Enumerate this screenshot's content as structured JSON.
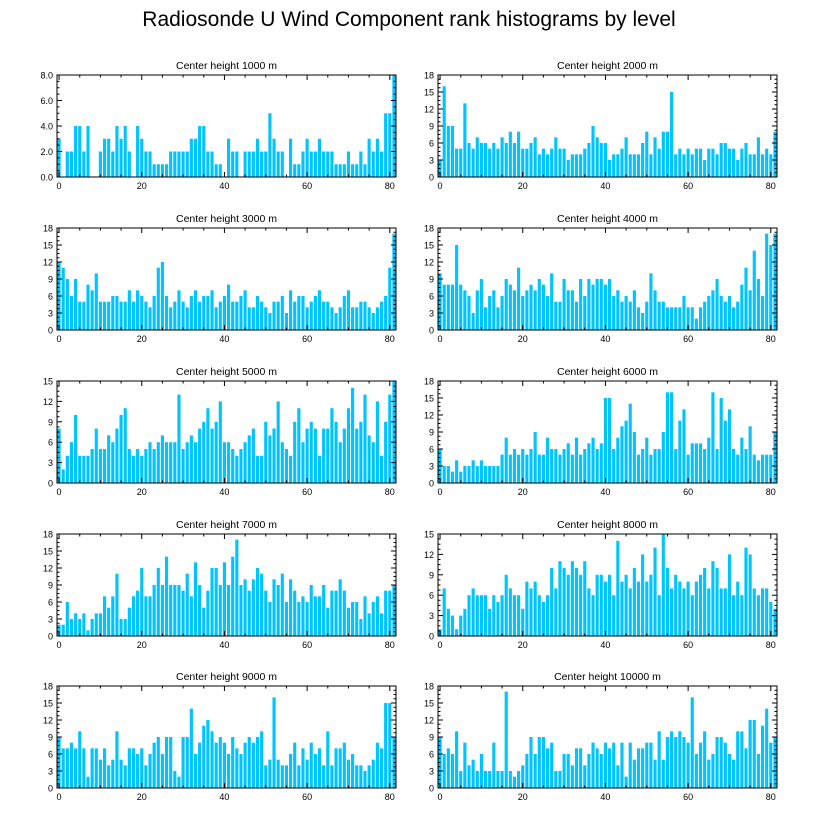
{
  "title": "Radiosonde U Wind Component rank histograms by level",
  "colors": {
    "bar": "#00c4ff",
    "axis": "#000000",
    "background": "#ffffff"
  },
  "chart_data": [
    {
      "type": "bar",
      "subtitle": "Center height 1000 m",
      "ylim": [
        0,
        8
      ],
      "yticks": [
        0,
        2,
        4,
        6,
        8
      ],
      "ytick_labels": [
        "0.0",
        "2.0",
        "4.0",
        "6.0",
        "8.0"
      ],
      "xticks": [
        0,
        20,
        40,
        60,
        80
      ],
      "xlim": [
        -0.5,
        81.5
      ],
      "values": [
        3,
        0,
        2,
        2,
        4,
        4,
        2,
        4,
        0,
        0,
        2,
        3,
        3,
        2,
        4,
        3,
        4,
        2,
        0,
        4,
        3,
        2,
        2,
        1,
        1,
        1,
        1,
        2,
        2,
        2,
        2,
        2,
        3,
        3,
        4,
        4,
        2,
        2,
        1,
        1,
        0,
        3,
        2,
        2,
        0,
        2,
        2,
        2,
        3,
        2,
        2,
        5,
        3,
        2,
        2,
        0,
        3,
        1,
        1,
        2,
        3,
        2,
        2,
        3,
        2,
        2,
        2,
        1,
        1,
        1,
        2,
        1,
        1,
        2,
        1,
        3,
        2,
        3,
        2,
        5,
        5,
        8
      ]
    },
    {
      "type": "bar",
      "subtitle": "Center height 2000 m",
      "ylim": [
        0,
        18
      ],
      "yticks": [
        0,
        3,
        6,
        9,
        12,
        15,
        18
      ],
      "ytick_labels": [
        "0",
        "3",
        "6",
        "9",
        "12",
        "15",
        "18"
      ],
      "xticks": [
        0,
        20,
        40,
        60,
        80
      ],
      "xlim": [
        -0.5,
        81.5
      ],
      "values": [
        3,
        16,
        9,
        9,
        5,
        5,
        13,
        6,
        5,
        7,
        6,
        6,
        5,
        6,
        5,
        7,
        6,
        8,
        6,
        8,
        5,
        5,
        6,
        7,
        4,
        5,
        4,
        5,
        7,
        5,
        5,
        3,
        4,
        4,
        4,
        5,
        6,
        9,
        7,
        6,
        6,
        3,
        4,
        4,
        5,
        7,
        4,
        4,
        4,
        6,
        8,
        4,
        7,
        5,
        8,
        8,
        15,
        4,
        5,
        4,
        5,
        4,
        5,
        5,
        3,
        5,
        5,
        4,
        6,
        6,
        5,
        5,
        3,
        5,
        6,
        4,
        4,
        7,
        4,
        5,
        4,
        8
      ]
    },
    {
      "type": "bar",
      "subtitle": "Center height 3000 m",
      "ylim": [
        0,
        18
      ],
      "yticks": [
        0,
        3,
        6,
        9,
        12,
        15,
        18
      ],
      "ytick_labels": [
        "0",
        "3",
        "6",
        "9",
        "12",
        "15",
        "18"
      ],
      "xticks": [
        0,
        20,
        40,
        60,
        80
      ],
      "xlim": [
        -0.5,
        81.5
      ],
      "values": [
        12,
        11,
        9,
        6,
        9,
        5,
        5,
        8,
        7,
        10,
        5,
        5,
        5,
        6,
        6,
        5,
        5,
        7,
        5,
        7,
        6,
        5,
        4,
        6,
        11,
        12,
        6,
        4,
        5,
        7,
        5,
        4,
        6,
        7,
        5,
        6,
        6,
        7,
        4,
        5,
        6,
        8,
        5,
        5,
        6,
        7,
        4,
        4,
        6,
        5,
        4,
        3,
        5,
        5,
        6,
        3,
        7,
        5,
        6,
        6,
        4,
        5,
        6,
        7,
        5,
        5,
        4,
        3,
        4,
        6,
        7,
        4,
        4,
        5,
        5,
        4,
        3,
        4,
        5,
        6,
        11,
        17
      ]
    },
    {
      "type": "bar",
      "subtitle": "Center height 4000 m",
      "ylim": [
        0,
        18
      ],
      "yticks": [
        0,
        3,
        6,
        9,
        12,
        15,
        18
      ],
      "ytick_labels": [
        "0",
        "3",
        "6",
        "9",
        "12",
        "15",
        "18"
      ],
      "xticks": [
        0,
        20,
        40,
        60,
        80
      ],
      "xlim": [
        -0.5,
        81.5
      ],
      "values": [
        10,
        8,
        8,
        8,
        15,
        8,
        7,
        6,
        3,
        7,
        9,
        4,
        6,
        7,
        4,
        6,
        9,
        8,
        7,
        11,
        6,
        7,
        8,
        7,
        9,
        8,
        6,
        10,
        5,
        5,
        9,
        7,
        7,
        5,
        9,
        6,
        9,
        8,
        9,
        9,
        8,
        9,
        6,
        7,
        5,
        6,
        5,
        7,
        4,
        3,
        5,
        10,
        7,
        5,
        5,
        4,
        4,
        4,
        4,
        6,
        4,
        4,
        2,
        4,
        5,
        6,
        7,
        9,
        6,
        5,
        6,
        4,
        5,
        8,
        11,
        7,
        14,
        9,
        6,
        17,
        15,
        17
      ]
    },
    {
      "type": "bar",
      "subtitle": "Center height 5000 m",
      "ylim": [
        0,
        15
      ],
      "yticks": [
        0,
        3,
        6,
        9,
        12,
        15
      ],
      "ytick_labels": [
        "0",
        "3",
        "6",
        "9",
        "12",
        "15"
      ],
      "xticks": [
        0,
        20,
        40,
        60,
        80
      ],
      "xlim": [
        -0.5,
        81.5
      ],
      "values": [
        8,
        2,
        4,
        6,
        10,
        4,
        4,
        4,
        5,
        8,
        5,
        5,
        7,
        6,
        8,
        10,
        11,
        5,
        4,
        5,
        4,
        5,
        6,
        5,
        6,
        7,
        6,
        6,
        6,
        13,
        5,
        6,
        7,
        6,
        8,
        9,
        11,
        8,
        9,
        12,
        6,
        6,
        5,
        4,
        5,
        6,
        7,
        8,
        4,
        4,
        9,
        7,
        8,
        12,
        6,
        5,
        4,
        9,
        11,
        6,
        8,
        9,
        8,
        4,
        8,
        8,
        11,
        9,
        6,
        8,
        11,
        14,
        8,
        9,
        13,
        7,
        6,
        12,
        4,
        9,
        13,
        15
      ]
    },
    {
      "type": "bar",
      "subtitle": "Center height 6000 m",
      "ylim": [
        0,
        18
      ],
      "yticks": [
        0,
        3,
        6,
        9,
        12,
        15,
        18
      ],
      "ytick_labels": [
        "0",
        "3",
        "6",
        "9",
        "12",
        "15",
        "18"
      ],
      "xticks": [
        0,
        20,
        40,
        60,
        80
      ],
      "xlim": [
        -0.5,
        81.5
      ],
      "values": [
        6,
        3,
        3,
        2,
        4,
        2,
        3,
        3,
        4,
        3,
        4,
        3,
        3,
        3,
        3,
        5,
        8,
        5,
        6,
        5,
        6,
        5,
        6,
        9,
        5,
        5,
        8,
        6,
        6,
        5,
        6,
        7,
        5,
        8,
        5,
        6,
        7,
        8,
        6,
        7,
        15,
        15,
        6,
        8,
        10,
        11,
        14,
        9,
        5,
        6,
        8,
        5,
        6,
        6,
        9,
        16,
        16,
        6,
        11,
        13,
        5,
        7,
        7,
        7,
        6,
        8,
        16,
        6,
        15,
        11,
        13,
        6,
        5,
        8,
        6,
        10,
        5,
        4,
        5,
        5,
        5,
        9
      ]
    },
    {
      "type": "bar",
      "subtitle": "Center height 7000 m",
      "ylim": [
        0,
        18
      ],
      "yticks": [
        0,
        3,
        6,
        9,
        12,
        15,
        18
      ],
      "ytick_labels": [
        "0",
        "3",
        "6",
        "9",
        "12",
        "15",
        "18"
      ],
      "xticks": [
        0,
        20,
        40,
        60,
        80
      ],
      "xlim": [
        -0.5,
        81.5
      ],
      "values": [
        2,
        2,
        6,
        3,
        4,
        3,
        4,
        1,
        3,
        4,
        4,
        7,
        5,
        7,
        11,
        3,
        3,
        5,
        7,
        8,
        12,
        7,
        7,
        9,
        12,
        9,
        14,
        9,
        9,
        9,
        8,
        11,
        7,
        13,
        9,
        5,
        8,
        12,
        12,
        9,
        13,
        9,
        14,
        17,
        9,
        10,
        8,
        10,
        12,
        11,
        8,
        6,
        10,
        9,
        11,
        6,
        10,
        8,
        6,
        7,
        6,
        9,
        7,
        7,
        9,
        5,
        8,
        8,
        10,
        8,
        5,
        6,
        6,
        3,
        7,
        4,
        6,
        7,
        4,
        8,
        8,
        9
      ]
    },
    {
      "type": "bar",
      "subtitle": "Center height 8000 m",
      "ylim": [
        0,
        15
      ],
      "yticks": [
        0,
        3,
        6,
        9,
        12,
        15
      ],
      "ytick_labels": [
        "0",
        "3",
        "6",
        "9",
        "12",
        "15"
      ],
      "xticks": [
        0,
        20,
        40,
        60,
        80
      ],
      "xlim": [
        -0.5,
        81.5
      ],
      "values": [
        1,
        7,
        4,
        3,
        1,
        3,
        4,
        6,
        7,
        6,
        6,
        6,
        4,
        6,
        5,
        6,
        9,
        7,
        6,
        6,
        4,
        8,
        7,
        8,
        6,
        5,
        6,
        10,
        7,
        11,
        10,
        9,
        11,
        10,
        9,
        11,
        7,
        6,
        9,
        9,
        8,
        9,
        6,
        14,
        8,
        9,
        7,
        10,
        8,
        12,
        8,
        9,
        13,
        6,
        15,
        10,
        7,
        9,
        8,
        7,
        8,
        6,
        8,
        9,
        10,
        7,
        11,
        10,
        7,
        7,
        12,
        6,
        8,
        6,
        13,
        12,
        7,
        6,
        7,
        7,
        5,
        4
      ]
    },
    {
      "type": "bar",
      "subtitle": "Center height 9000 m",
      "ylim": [
        0,
        18
      ],
      "yticks": [
        0,
        3,
        6,
        9,
        12,
        15,
        18
      ],
      "ytick_labels": [
        "0",
        "3",
        "6",
        "9",
        "12",
        "15",
        "18"
      ],
      "xticks": [
        0,
        20,
        40,
        60,
        80
      ],
      "xlim": [
        -0.5,
        81.5
      ],
      "values": [
        9,
        7,
        7,
        8,
        7,
        10,
        7,
        2,
        7,
        7,
        5,
        7,
        4,
        5,
        10,
        5,
        4,
        7,
        7,
        6,
        7,
        4,
        6,
        8,
        9,
        6,
        9,
        9,
        3,
        2,
        9,
        9,
        14,
        6,
        8,
        11,
        12,
        10,
        8,
        9,
        8,
        6,
        9,
        7,
        6,
        8,
        9,
        8,
        9,
        10,
        4,
        5,
        16,
        5,
        4,
        4,
        6,
        8,
        4,
        7,
        5,
        8,
        6,
        7,
        4,
        10,
        4,
        7,
        7,
        8,
        5,
        6,
        4,
        4,
        3,
        4,
        5,
        8,
        7,
        15,
        15,
        9
      ]
    },
    {
      "type": "bar",
      "subtitle": "Center height 10000 m",
      "ylim": [
        0,
        18
      ],
      "yticks": [
        0,
        3,
        6,
        9,
        12,
        15,
        18
      ],
      "ytick_labels": [
        "0",
        "3",
        "6",
        "9",
        "12",
        "15",
        "18"
      ],
      "xticks": [
        0,
        20,
        40,
        60,
        80
      ],
      "xlim": [
        -0.5,
        81.5
      ],
      "values": [
        9,
        6,
        7,
        6,
        10,
        3,
        8,
        4,
        5,
        3,
        6,
        3,
        3,
        8,
        3,
        3,
        17,
        3,
        2,
        3,
        4,
        6,
        9,
        6,
        9,
        9,
        7,
        8,
        3,
        3,
        6,
        6,
        4,
        7,
        7,
        4,
        6,
        8,
        7,
        6,
        8,
        7,
        8,
        4,
        8,
        2,
        8,
        5,
        7,
        7,
        8,
        8,
        5,
        10,
        5,
        9,
        10,
        9,
        10,
        9,
        8,
        16,
        6,
        8,
        10,
        5,
        6,
        9,
        9,
        8,
        6,
        5,
        10,
        10,
        7,
        12,
        12,
        6,
        11,
        14,
        8,
        9
      ]
    }
  ]
}
